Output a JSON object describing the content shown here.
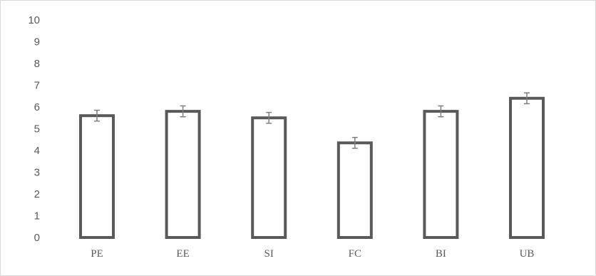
{
  "chart_data": {
    "type": "bar",
    "title": "",
    "xlabel": "",
    "ylabel": "",
    "categories": [
      "PE",
      "EE",
      "SI",
      "FC",
      "BI",
      "UB"
    ],
    "values": [
      5.6,
      5.8,
      5.5,
      4.35,
      5.8,
      6.4
    ],
    "error": [
      0.25,
      0.25,
      0.25,
      0.25,
      0.25,
      0.25
    ],
    "ylim": [
      0,
      10
    ],
    "yticks": [
      "0",
      "1",
      "2",
      "3",
      "4",
      "5",
      "6",
      "7",
      "8",
      "9",
      "10"
    ],
    "grid": false,
    "legend": "none",
    "colors": {
      "bar_stroke": "#595959",
      "bar_fill": "#ffffff",
      "error_bar": "#7f7f7f",
      "tick_text": "#595959"
    }
  }
}
